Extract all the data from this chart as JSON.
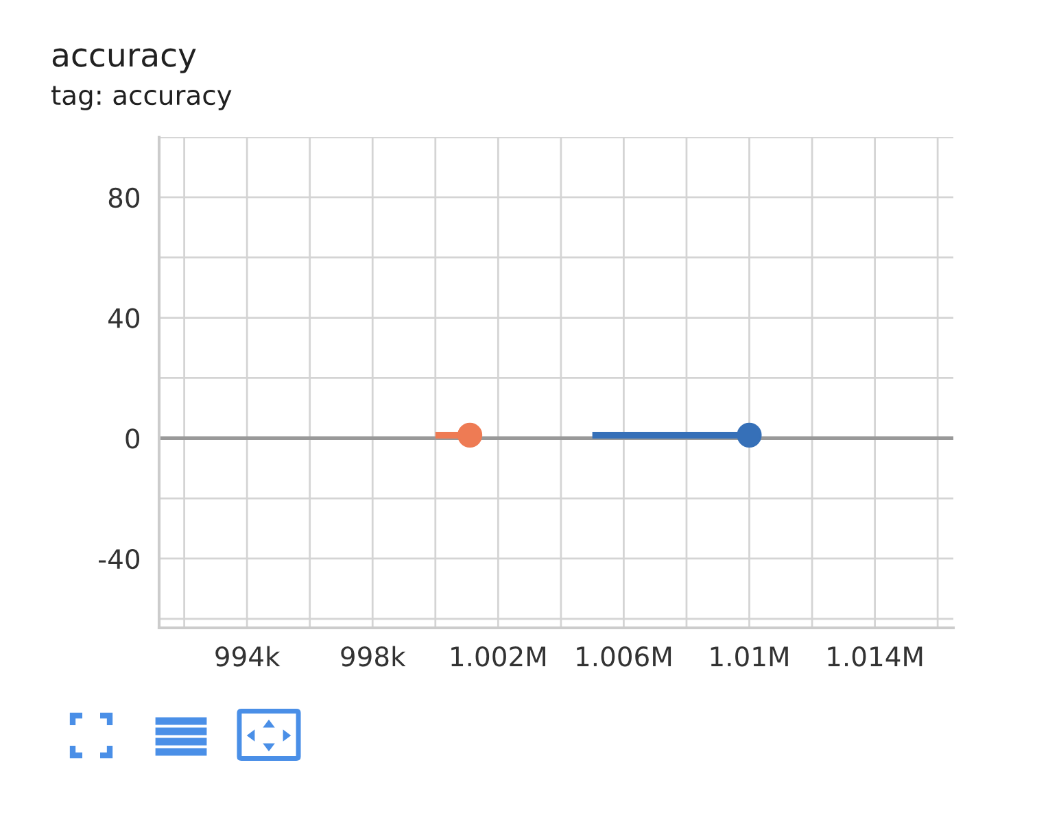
{
  "chart_data": {
    "type": "line",
    "title": "accuracy",
    "subtitle": "tag: accuracy",
    "series": [
      {
        "color": "#ee7b54",
        "x": [
          1000000,
          1001100
        ],
        "values": [
          1,
          1
        ]
      },
      {
        "color": "#3670b8",
        "x": [
          1005000,
          1010000
        ],
        "values": [
          1,
          1
        ]
      }
    ],
    "xlim": [
      991200,
      1016500
    ],
    "xticks": [
      {
        "value": 992000,
        "label": null
      },
      {
        "value": 994000,
        "label": "994k"
      },
      {
        "value": 996000,
        "label": null
      },
      {
        "value": 998000,
        "label": "998k"
      },
      {
        "value": 1000000,
        "label": null
      },
      {
        "value": 1002000,
        "label": "1.002M"
      },
      {
        "value": 1004000,
        "label": null
      },
      {
        "value": 1006000,
        "label": "1.006M"
      },
      {
        "value": 1008000,
        "label": null
      },
      {
        "value": 1010000,
        "label": "1.01M"
      },
      {
        "value": 1012000,
        "label": null
      },
      {
        "value": 1014000,
        "label": "1.014M"
      },
      {
        "value": 1016000,
        "label": null
      }
    ],
    "ylim": [
      -63,
      100
    ],
    "yticks": [
      {
        "value": -60,
        "label": null
      },
      -40,
      {
        "value": -20,
        "label": null
      },
      0,
      {
        "value": 20,
        "label": null
      },
      40,
      {
        "value": 60,
        "label": null
      },
      80,
      {
        "value": 100,
        "label": null
      }
    ],
    "ref_lines": [
      {
        "axis": "y",
        "value": 0,
        "color": "#999999"
      }
    ],
    "grid": true,
    "marker": "circle",
    "line_style": "solid",
    "legend": false
  }
}
